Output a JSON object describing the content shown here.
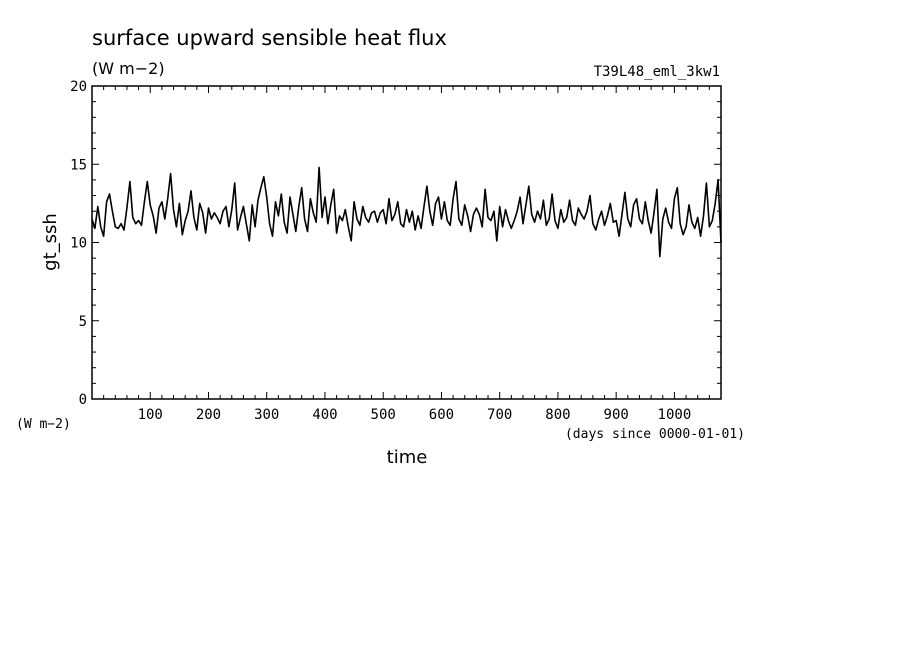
{
  "chart_data": {
    "type": "line",
    "title": "surface upward sensible heat flux",
    "title_units": "(W m−2)",
    "run_label": "T39L48_eml_3kw1",
    "xlabel": "time",
    "xunits": "(days since 0000-01-01)",
    "ylabel": "gt_ssh",
    "yunits": "(W m−2)",
    "xlim": [
      0,
      1080
    ],
    "ylim": [
      0,
      20
    ],
    "x_ticks": [
      100,
      200,
      300,
      400,
      500,
      600,
      700,
      800,
      900,
      1000
    ],
    "x_tick_labels": [
      "100",
      "200",
      "300",
      "400",
      "500",
      "600",
      "700",
      "800",
      "900",
      "1000"
    ],
    "y_ticks": [
      0,
      5,
      10,
      15,
      20
    ],
    "y_tick_labels": [
      "0",
      "5",
      "10",
      "15",
      "20"
    ],
    "grid": false,
    "line_color": "#000000",
    "series": [
      {
        "x": [
          0,
          5,
          10,
          15,
          20,
          25,
          30,
          35,
          40,
          45,
          50,
          55,
          60,
          65,
          70,
          75,
          80,
          85,
          90,
          95,
          100,
          105,
          110,
          115,
          120,
          125,
          130,
          135,
          140,
          145,
          150,
          155,
          160,
          165,
          170,
          175,
          180,
          185,
          190,
          195,
          200,
          205,
          210,
          215,
          220,
          225,
          230,
          235,
          240,
          245,
          250,
          255,
          260,
          265,
          270,
          275,
          280,
          285,
          290,
          295,
          300,
          305,
          310,
          315,
          320,
          325,
          330,
          335,
          340,
          345,
          350,
          355,
          360,
          365,
          370,
          375,
          380,
          385,
          390,
          395,
          400,
          405,
          410,
          415,
          420,
          425,
          430,
          435,
          440,
          445,
          450,
          455,
          460,
          465,
          470,
          475,
          480,
          485,
          490,
          495,
          500,
          505,
          510,
          515,
          520,
          525,
          530,
          535,
          540,
          545,
          550,
          555,
          560,
          565,
          570,
          575,
          580,
          585,
          590,
          595,
          600,
          605,
          610,
          615,
          620,
          625,
          630,
          635,
          640,
          645,
          650,
          655,
          660,
          665,
          670,
          675,
          680,
          685,
          690,
          695,
          700,
          705,
          710,
          715,
          720,
          725,
          730,
          735,
          740,
          745,
          750,
          755,
          760,
          765,
          770,
          775,
          780,
          785,
          790,
          795,
          800,
          805,
          810,
          815,
          820,
          825,
          830,
          835,
          840,
          845,
          850,
          855,
          860,
          865,
          870,
          875,
          880,
          885,
          890,
          895,
          900,
          905,
          910,
          915,
          920,
          925,
          930,
          935,
          940,
          945,
          950,
          955,
          960,
          965,
          970,
          975,
          980,
          985,
          990,
          995,
          1000,
          1005,
          1010,
          1015,
          1020,
          1025,
          1030,
          1035,
          1040,
          1045,
          1050,
          1055,
          1060,
          1065,
          1070,
          1075,
          1080
        ],
        "y": [
          11.5,
          10.9,
          12.3,
          11.0,
          10.4,
          12.6,
          13.1,
          12.0,
          11.0,
          10.9,
          11.2,
          10.8,
          12.2,
          13.9,
          11.6,
          11.2,
          11.4,
          11.1,
          12.6,
          13.9,
          12.4,
          11.7,
          10.6,
          12.2,
          12.6,
          11.5,
          12.8,
          14.4,
          12.1,
          11.0,
          12.5,
          10.5,
          11.4,
          12.0,
          13.3,
          11.6,
          10.8,
          12.5,
          11.9,
          10.6,
          12.2,
          11.5,
          11.9,
          11.6,
          11.2,
          12.0,
          12.3,
          11.0,
          12.1,
          13.8,
          10.8,
          11.6,
          12.3,
          11.2,
          10.1,
          12.4,
          11.0,
          12.7,
          13.5,
          14.2,
          12.9,
          11.2,
          10.4,
          12.6,
          11.7,
          13.1,
          11.3,
          10.6,
          12.9,
          11.8,
          10.7,
          12.3,
          13.5,
          11.5,
          10.7,
          12.8,
          11.9,
          11.3,
          14.8,
          11.6,
          12.9,
          11.2,
          12.4,
          13.4,
          10.6,
          11.7,
          11.4,
          12.1,
          11.0,
          10.1,
          12.6,
          11.5,
          11.1,
          12.3,
          11.6,
          11.3,
          11.9,
          12.0,
          11.3,
          11.9,
          12.1,
          11.2,
          12.8,
          11.4,
          11.8,
          12.6,
          11.2,
          11.0,
          12.1,
          11.3,
          12.0,
          10.8,
          11.7,
          10.9,
          12.3,
          13.6,
          12.0,
          11.1,
          12.5,
          12.9,
          11.5,
          12.6,
          11.4,
          11.1,
          12.8,
          13.9,
          11.5,
          11.1,
          12.4,
          11.7,
          10.7,
          11.8,
          12.2,
          11.8,
          11.0,
          13.4,
          11.6,
          11.4,
          12.0,
          10.1,
          12.3,
          11.0,
          12.1,
          11.4,
          10.9,
          11.4,
          12.0,
          12.9,
          11.2,
          12.4,
          13.6,
          11.8,
          11.3,
          12.0,
          11.5,
          12.7,
          11.1,
          11.5,
          13.1,
          11.4,
          10.9,
          12.1,
          11.3,
          11.6,
          12.7,
          11.4,
          11.1,
          12.2,
          11.8,
          11.5,
          12.0,
          13.0,
          11.2,
          10.8,
          11.5,
          12.0,
          11.1,
          11.7,
          12.5,
          11.3,
          11.4,
          10.4,
          11.8,
          13.2,
          11.5,
          11.0,
          12.4,
          12.8,
          11.5,
          11.2,
          12.6,
          11.4,
          10.6,
          11.9,
          13.4,
          9.1,
          11.5,
          12.2,
          11.3,
          10.9,
          12.8,
          13.5,
          11.2,
          10.5,
          11.0,
          12.4,
          11.3,
          10.9,
          11.6,
          10.4,
          11.7,
          13.8,
          11.0,
          11.4,
          12.5,
          14.0,
          10.0
        ]
      }
    ]
  }
}
